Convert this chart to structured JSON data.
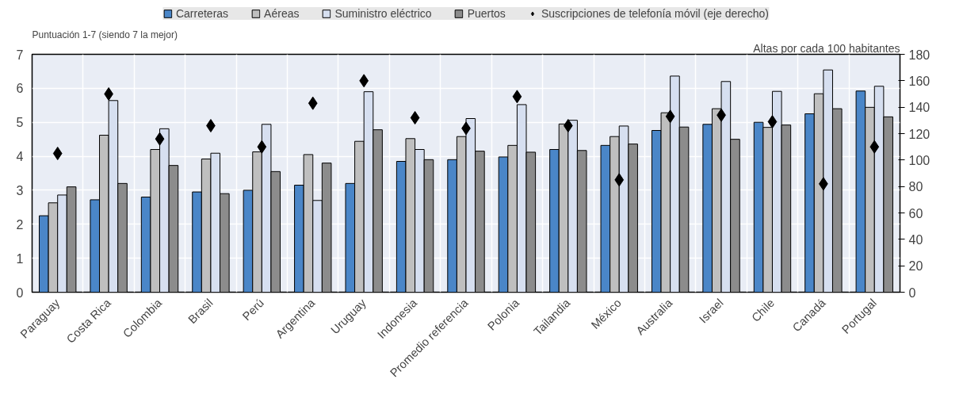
{
  "chart_data": {
    "type": "bar",
    "ylabel": "Puntuación 1-7 (siendo 7 la mejor)",
    "y2label": "Altas por cada 100 habitantes",
    "categories": [
      "Paraguay",
      "Costa Rica",
      "Colombia",
      "Brasil",
      "Perú",
      "Argentina",
      "Uruguay",
      "Indonesia",
      "Promedio referencia",
      "Polonia",
      "Tailandia",
      "México",
      "Australia",
      "Israel",
      "Chile",
      "Canadá",
      "Portugal"
    ],
    "series": [
      {
        "name": "Carreteras",
        "color": "#4a86c8",
        "values": [
          2.25,
          2.72,
          2.8,
          2.95,
          3.0,
          3.15,
          3.2,
          3.85,
          3.9,
          3.98,
          4.2,
          4.32,
          4.76,
          4.94,
          5.0,
          5.25,
          5.92
        ]
      },
      {
        "name": "Aéreas",
        "color": "#bfbfbf",
        "values": [
          2.63,
          4.62,
          4.2,
          3.92,
          4.13,
          4.05,
          4.44,
          4.52,
          4.58,
          4.32,
          4.95,
          4.58,
          5.28,
          5.4,
          4.85,
          5.84,
          5.44
        ]
      },
      {
        "name": "Suministro eléctrico",
        "color": "#d6dff0",
        "values": [
          2.86,
          5.64,
          4.81,
          4.09,
          4.94,
          2.7,
          5.9,
          4.2,
          5.11,
          5.52,
          5.06,
          4.89,
          6.36,
          6.2,
          5.91,
          6.54,
          6.06
        ]
      },
      {
        "name": "Puertos",
        "color": "#8c8c8c",
        "values": [
          3.1,
          3.2,
          3.73,
          2.9,
          3.55,
          3.8,
          4.78,
          3.9,
          4.15,
          4.12,
          4.17,
          4.36,
          4.86,
          4.5,
          4.92,
          5.4,
          5.16
        ]
      },
      {
        "name": "Suscripciones de telefonía móvil (eje derecho)",
        "type": "scatter",
        "axis": "y2",
        "marker": "diamond",
        "color": "#000000",
        "values": [
          105,
          150,
          116,
          126,
          110,
          143,
          160,
          132,
          124,
          148,
          126,
          85,
          133,
          134,
          129,
          82,
          110
        ]
      }
    ],
    "ylim": [
      0,
      7
    ],
    "yticks": [
      0,
      1,
      2,
      3,
      4,
      5,
      6,
      7
    ],
    "y2lim": [
      0,
      180
    ],
    "y2ticks": [
      0,
      20,
      40,
      60,
      80,
      100,
      120,
      140,
      160,
      180
    ],
    "grid": true,
    "legend": "top"
  }
}
